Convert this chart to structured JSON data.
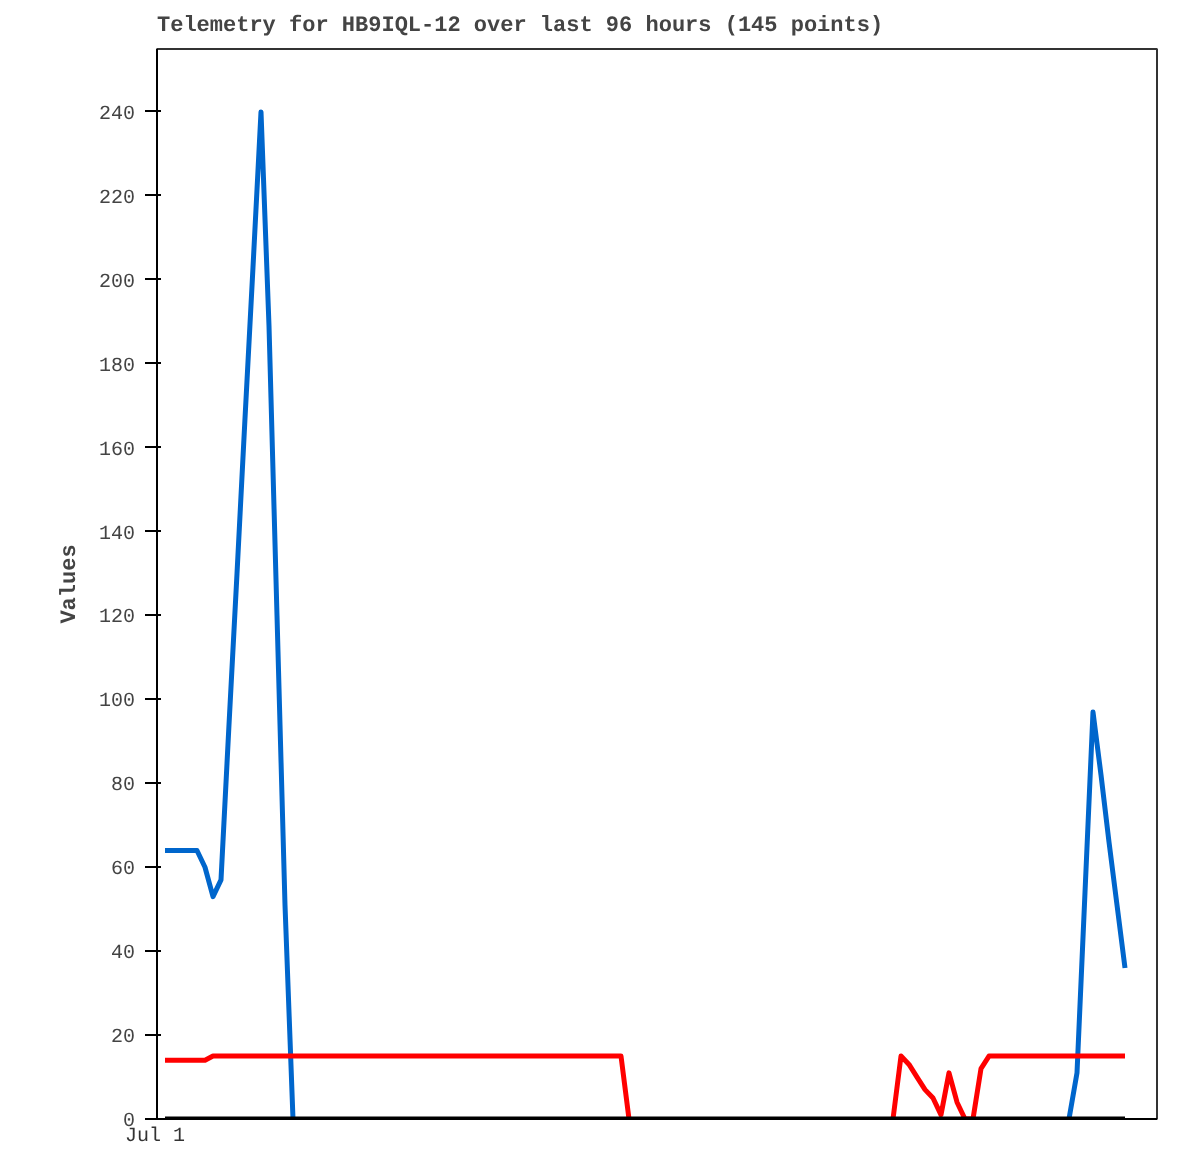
{
  "chart_data": {
    "type": "line",
    "title": "Telemetry for HB9IQL-12 over last 96 hours (145 points)",
    "ylabel": "Values",
    "annotations": [
      "Jul 1"
    ],
    "ylim": [
      0,
      255
    ],
    "yticks": [
      0,
      20,
      40,
      60,
      80,
      100,
      120,
      140,
      160,
      180,
      200,
      220,
      240
    ],
    "grid": false,
    "line_style": "solid",
    "marker": "none",
    "categories": [
      null,
      null,
      null,
      null,
      null,
      null,
      null,
      null,
      null,
      null,
      null,
      null,
      null,
      null,
      null,
      null,
      null,
      null,
      null,
      null,
      null,
      null,
      null,
      null,
      null,
      null,
      null,
      null,
      null,
      null,
      null,
      null,
      null,
      null,
      null,
      null,
      null,
      null,
      null,
      null,
      null,
      null,
      null,
      null,
      null,
      null,
      null,
      null,
      null,
      null,
      null,
      null,
      null,
      null,
      null,
      null,
      null,
      null,
      null,
      null,
      null,
      null,
      null,
      null,
      null,
      null,
      null,
      null,
      null,
      null,
      null,
      null,
      null,
      null,
      null,
      null,
      null,
      null,
      null,
      null,
      null,
      null,
      null,
      null,
      null,
      null,
      null,
      null,
      null,
      null,
      null,
      null,
      null,
      null,
      null,
      null,
      null,
      null,
      null,
      null,
      null,
      null,
      null,
      null,
      null,
      null,
      null,
      null,
      null,
      null,
      null,
      null,
      null,
      null,
      null,
      null,
      null,
      null,
      null,
      null,
      null
    ],
    "series": [
      {
        "color": "#0066cc",
        "values": [
          64,
          64,
          64,
          64,
          64,
          60,
          53,
          57,
          94,
          130,
          167,
          203,
          240,
          189,
          120,
          51,
          0,
          null,
          null,
          null,
          null,
          null,
          null,
          null,
          null,
          null,
          null,
          null,
          null,
          null,
          null,
          null,
          null,
          null,
          null,
          null,
          null,
          null,
          null,
          null,
          null,
          null,
          null,
          null,
          null,
          null,
          null,
          null,
          null,
          null,
          null,
          null,
          null,
          null,
          null,
          null,
          null,
          null,
          null,
          null,
          null,
          null,
          null,
          null,
          null,
          null,
          null,
          null,
          null,
          null,
          null,
          null,
          null,
          null,
          null,
          null,
          null,
          null,
          null,
          null,
          null,
          null,
          null,
          null,
          null,
          null,
          null,
          null,
          null,
          null,
          null,
          null,
          null,
          null,
          null,
          null,
          null,
          null,
          null,
          null,
          null,
          null,
          null,
          null,
          null,
          null,
          null,
          null,
          null,
          null,
          null,
          null,
          null,
          0,
          11,
          54,
          97,
          82,
          66,
          51,
          36
        ]
      },
      {
        "color": "#ff0000",
        "values": [
          14,
          14,
          14,
          14,
          14,
          14,
          15,
          15,
          15,
          15,
          15,
          15,
          15,
          15,
          15,
          15,
          15,
          15,
          15,
          15,
          15,
          15,
          15,
          15,
          15,
          15,
          15,
          15,
          15,
          15,
          15,
          15,
          15,
          15,
          15,
          15,
          15,
          15,
          15,
          15,
          15,
          15,
          15,
          15,
          15,
          15,
          15,
          15,
          15,
          15,
          15,
          15,
          15,
          15,
          15,
          15,
          15,
          15,
          0,
          null,
          null,
          null,
          null,
          null,
          null,
          null,
          null,
          null,
          null,
          null,
          null,
          null,
          null,
          null,
          null,
          null,
          null,
          null,
          null,
          null,
          null,
          null,
          null,
          null,
          null,
          null,
          null,
          null,
          null,
          null,
          null,
          0,
          15,
          13,
          10,
          7,
          5,
          1,
          11,
          4,
          0,
          0,
          12,
          15,
          15,
          15,
          15,
          15,
          15,
          15,
          15,
          15,
          15,
          15,
          15,
          15,
          15,
          15,
          15,
          15,
          15
        ]
      },
      {
        "color": "#000000",
        "values": [
          0,
          0,
          0,
          0,
          0,
          0,
          0,
          0,
          0,
          0,
          0,
          0,
          0,
          0,
          0,
          0,
          0,
          0,
          0,
          0,
          0,
          0,
          0,
          0,
          0,
          0,
          0,
          0,
          0,
          0,
          0,
          0,
          0,
          0,
          0,
          0,
          0,
          0,
          0,
          0,
          0,
          0,
          0,
          0,
          0,
          0,
          0,
          0,
          0,
          0,
          0,
          0,
          0,
          0,
          0,
          0,
          0,
          0,
          0,
          0,
          0,
          0,
          0,
          0,
          0,
          0,
          0,
          0,
          0,
          0,
          0,
          0,
          0,
          0,
          0,
          0,
          0,
          0,
          0,
          0,
          0,
          0,
          0,
          0,
          0,
          0,
          0,
          0,
          0,
          0,
          0,
          0,
          0,
          0,
          0,
          0,
          0,
          0,
          0,
          0,
          0,
          0,
          0,
          0,
          0,
          0,
          0,
          0,
          0,
          0,
          0,
          0,
          0,
          0,
          0,
          0,
          0,
          0,
          0,
          0,
          0
        ]
      }
    ]
  }
}
